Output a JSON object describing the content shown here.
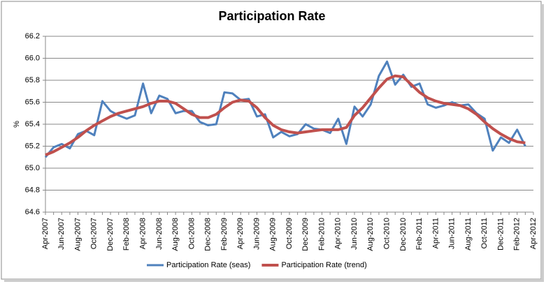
{
  "chart_data": {
    "type": "line",
    "title": "Participation Rate",
    "y_label": "%",
    "categories": [
      "Apr-2007",
      null,
      "Jun-2007",
      null,
      "Aug-2007",
      null,
      "Oct-2007",
      null,
      "Dec-2007",
      null,
      "Feb-2008",
      null,
      "Apr-2008",
      null,
      "Jun-2008",
      null,
      "Aug-2008",
      null,
      "Oct-2008",
      null,
      "Dec-2008",
      null,
      "Feb-2009",
      null,
      "Apr-2009",
      null,
      "Jun-2009",
      null,
      "Aug-2009",
      null,
      "Oct-2009",
      null,
      "Dec-2009",
      null,
      "Feb-2010",
      null,
      "Apr-2010",
      null,
      "Jun-2010",
      null,
      "Aug-2010",
      null,
      "Oct-2010",
      null,
      "Dec-2010",
      null,
      "Feb-2011",
      null,
      "Apr-2011",
      null,
      "Jun-2011",
      null,
      "Aug-2011",
      null,
      "Oct-2011",
      null,
      "Dec-2011",
      null,
      "Feb-2012",
      null,
      "Apr-2012"
    ],
    "series": [
      {
        "name": "Participation Rate (seas)",
        "color": "#4f81bd",
        "width": 3,
        "values": [
          65.1,
          65.19,
          65.22,
          65.18,
          65.31,
          65.34,
          65.3,
          65.61,
          65.52,
          65.48,
          65.45,
          65.48,
          65.77,
          65.5,
          65.66,
          65.63,
          65.5,
          65.52,
          65.52,
          65.42,
          65.39,
          65.4,
          65.69,
          65.68,
          65.62,
          65.63,
          65.47,
          65.49,
          65.28,
          65.33,
          65.29,
          65.31,
          65.4,
          65.36,
          65.35,
          65.32,
          65.45,
          65.22,
          65.56,
          65.47,
          65.58,
          65.84,
          65.97,
          65.76,
          65.85,
          65.74,
          65.77,
          65.58,
          65.55,
          65.57,
          65.6,
          65.57,
          65.58,
          65.5,
          65.45,
          65.16,
          65.28,
          65.23,
          65.35,
          65.2,
          null
        ]
      },
      {
        "name": "Participation Rate (trend)",
        "color": "#c0504d",
        "width": 4,
        "values": [
          65.12,
          65.15,
          65.19,
          65.23,
          65.28,
          65.34,
          65.39,
          65.43,
          65.47,
          65.5,
          65.52,
          65.54,
          65.56,
          65.59,
          65.61,
          65.61,
          65.59,
          65.54,
          65.49,
          65.46,
          65.46,
          65.49,
          65.55,
          65.6,
          65.62,
          65.61,
          65.55,
          65.46,
          65.39,
          65.35,
          65.33,
          65.32,
          65.33,
          65.34,
          65.35,
          65.35,
          65.35,
          65.37,
          65.48,
          65.55,
          65.64,
          65.73,
          65.81,
          65.84,
          65.83,
          65.76,
          65.69,
          65.64,
          65.61,
          65.59,
          65.58,
          65.57,
          65.54,
          65.49,
          65.42,
          65.36,
          65.31,
          65.27,
          65.24,
          65.23,
          null
        ]
      }
    ],
    "ylim": [
      64.6,
      66.2
    ],
    "yticks": [
      {
        "value": 64.6,
        "label": "64.6"
      },
      {
        "value": 64.8,
        "label": "64.8"
      },
      {
        "value": 65.0,
        "label": "65.0"
      },
      {
        "value": 65.2,
        "label": "65.2"
      },
      {
        "value": 65.4,
        "label": "65.4"
      },
      {
        "value": 65.6,
        "label": "65.6"
      },
      {
        "value": 65.8,
        "label": "65.8"
      },
      {
        "value": 66.0,
        "label": "66.0"
      },
      {
        "value": 66.2,
        "label": "66.2"
      }
    ],
    "grid": true,
    "legend": "bottom"
  }
}
